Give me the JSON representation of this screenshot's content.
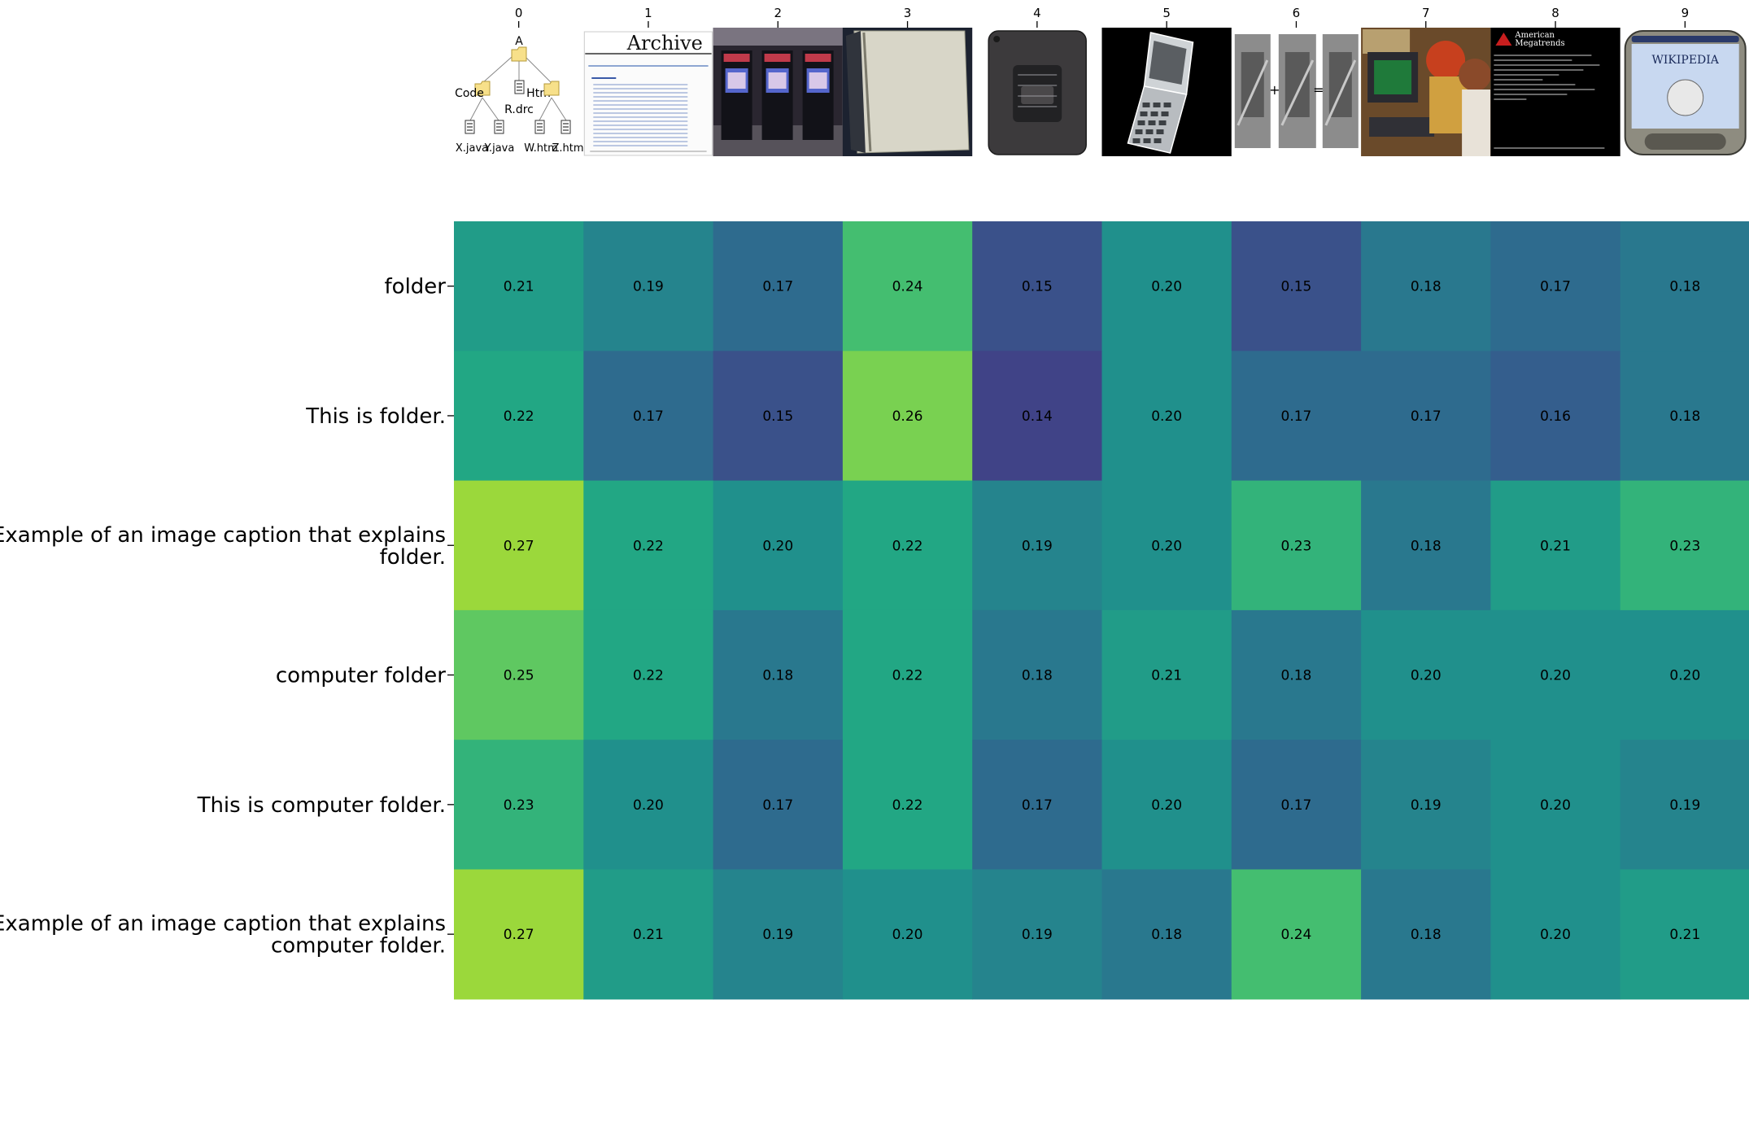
{
  "chart_data": {
    "type": "heatmap",
    "title": "",
    "xlabel": "",
    "ylabel": "",
    "colormap": "viridis",
    "color_range": [
      0.1,
      0.3
    ],
    "colorbar": false,
    "grid": false,
    "columns": [
      "0",
      "1",
      "2",
      "3",
      "4",
      "5",
      "6",
      "7",
      "8",
      "9"
    ],
    "column_images": [
      "tree diagram: A with Code, Htm folders and R.drc, X.java, Y.java, W.htm, Z.htm files",
      "Archive magazine contents page",
      "row of arcade cabinets",
      "open blank notebook",
      "grey electronic module with label",
      "transparent flip phone",
      "grayscale image arithmetic: image + image = image",
      "children using a computer",
      "black terminal screen with American Megatrends text",
      "handheld device showing Wikipedia"
    ],
    "column_image_texts": {
      "0": [
        "A",
        "Code",
        "Htm",
        "R.drc",
        "X.java",
        "Y.java",
        "W.htm",
        "Z.htm"
      ],
      "1": [
        "Archive"
      ],
      "6": [
        "+",
        "="
      ],
      "8": [
        "American",
        "Megatrends"
      ],
      "9": [
        "WIKIPEDIA"
      ]
    },
    "rows": [
      "folder",
      "This is folder.",
      "Example of an image caption that explains folder.",
      "computer folder",
      "This is computer folder.",
      "Example of an image caption that explains computer folder."
    ],
    "values": [
      [
        0.21,
        0.19,
        0.17,
        0.24,
        0.15,
        0.2,
        0.15,
        0.18,
        0.17,
        0.18
      ],
      [
        0.22,
        0.17,
        0.15,
        0.26,
        0.14,
        0.2,
        0.17,
        0.17,
        0.16,
        0.18
      ],
      [
        0.27,
        0.22,
        0.2,
        0.22,
        0.19,
        0.2,
        0.23,
        0.18,
        0.21,
        0.23
      ],
      [
        0.25,
        0.22,
        0.18,
        0.22,
        0.18,
        0.21,
        0.18,
        0.2,
        0.2,
        0.2
      ],
      [
        0.23,
        0.2,
        0.17,
        0.22,
        0.17,
        0.2,
        0.17,
        0.19,
        0.2,
        0.19
      ],
      [
        0.27,
        0.21,
        0.19,
        0.2,
        0.19,
        0.18,
        0.24,
        0.18,
        0.2,
        0.21
      ]
    ],
    "value_format": "0.00"
  }
}
